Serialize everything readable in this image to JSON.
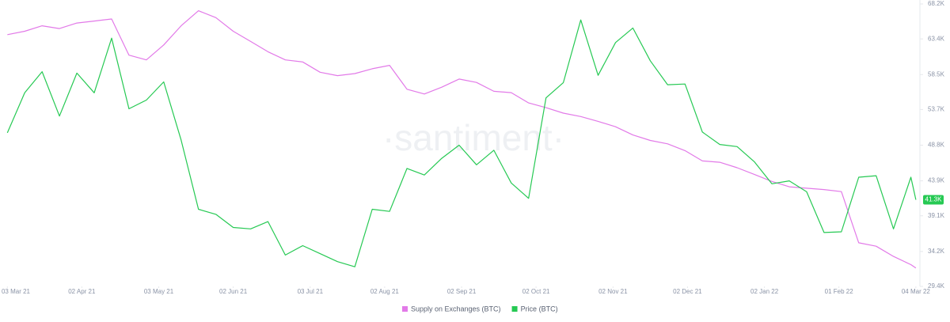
{
  "chart_data": {
    "type": "line",
    "watermark": "·santiment·",
    "x": [
      "2021-03-03",
      "2021-03-10",
      "2021-03-17",
      "2021-03-24",
      "2021-03-31",
      "2021-04-07",
      "2021-04-14",
      "2021-04-21",
      "2021-04-28",
      "2021-05-05",
      "2021-05-12",
      "2021-05-19",
      "2021-05-26",
      "2021-06-02",
      "2021-06-09",
      "2021-06-16",
      "2021-06-23",
      "2021-06-30",
      "2021-07-07",
      "2021-07-14",
      "2021-07-21",
      "2021-07-28",
      "2021-08-04",
      "2021-08-11",
      "2021-08-18",
      "2021-08-25",
      "2021-09-01",
      "2021-09-08",
      "2021-09-15",
      "2021-09-22",
      "2021-09-29",
      "2021-10-06",
      "2021-10-13",
      "2021-10-20",
      "2021-10-27",
      "2021-11-03",
      "2021-11-10",
      "2021-11-17",
      "2021-11-24",
      "2021-12-01",
      "2021-12-08",
      "2021-12-15",
      "2021-12-22",
      "2021-12-29",
      "2022-01-05",
      "2022-01-12",
      "2022-01-19",
      "2022-01-26",
      "2022-02-02",
      "2022-02-09",
      "2022-02-16",
      "2022-02-23",
      "2022-03-02",
      "2022-03-04"
    ],
    "series": [
      {
        "name": "Supply on Exchanges (BTC)",
        "color": "#e27ae8",
        "axis": "y2",
        "values": [
          2655000,
          2660000,
          2668000,
          2664000,
          2672000,
          2675000,
          2678000,
          2625000,
          2618000,
          2640000,
          2668000,
          2690000,
          2680000,
          2660000,
          2645000,
          2630000,
          2618000,
          2615000,
          2600000,
          2595000,
          2598000,
          2605000,
          2610000,
          2575000,
          2568000,
          2578000,
          2590000,
          2585000,
          2572000,
          2570000,
          2555000,
          2548000,
          2540000,
          2535000,
          2528000,
          2520000,
          2508000,
          2500000,
          2495000,
          2485000,
          2470000,
          2468000,
          2460000,
          2450000,
          2440000,
          2432000,
          2430000,
          2428000,
          2425000,
          2350000,
          2345000,
          2330000,
          2318000,
          2313000
        ]
      },
      {
        "name": "Price (BTC)",
        "color": "#26c953",
        "values": [
          50500,
          56000,
          58900,
          52800,
          58700,
          56000,
          63500,
          53800,
          55000,
          57500,
          49500,
          40000,
          39300,
          37500,
          37300,
          38300,
          33700,
          35000,
          33900,
          32800,
          32100,
          40000,
          39700,
          45600,
          44700,
          47000,
          48800,
          46100,
          48100,
          43600,
          41500,
          55300,
          57400,
          66000,
          58400,
          62900,
          64900,
          60400,
          57100,
          57200,
          50600,
          48900,
          48600,
          46500,
          43500,
          43900,
          42400,
          36800,
          36900,
          44400,
          44600,
          37300,
          44400,
          41300
        ]
      }
    ],
    "xlim": [
      "2021-03-01",
      "2022-03-05"
    ],
    "xticks": [
      {
        "value": "2021-03-03",
        "label": "03 Mar 21"
      },
      {
        "value": "2021-04-02",
        "label": "02 Apr 21"
      },
      {
        "value": "2021-05-03",
        "label": "03 May 21"
      },
      {
        "value": "2021-06-02",
        "label": "02 Jun 21"
      },
      {
        "value": "2021-07-03",
        "label": "03 Jul 21"
      },
      {
        "value": "2021-08-02",
        "label": "02 Aug 21"
      },
      {
        "value": "2021-09-02",
        "label": "02 Sep 21"
      },
      {
        "value": "2021-10-02",
        "label": "02 Oct 21"
      },
      {
        "value": "2021-11-02",
        "label": "02 Nov 21"
      },
      {
        "value": "2021-12-02",
        "label": "02 Dec 21"
      },
      {
        "value": "2022-01-02",
        "label": "02 Jan 22"
      },
      {
        "value": "2022-02-01",
        "label": "01 Feb 22"
      },
      {
        "value": "2022-03-04",
        "label": "04 Mar 22"
      }
    ],
    "ylim": [
      29400,
      68200
    ],
    "yticks": [
      {
        "value": 68200,
        "label": "68.2K"
      },
      {
        "value": 63400,
        "label": "63.4K"
      },
      {
        "value": 58500,
        "label": "58.5K"
      },
      {
        "value": 53700,
        "label": "53.7K"
      },
      {
        "value": 48800,
        "label": "48.8K"
      },
      {
        "value": 43900,
        "label": "43.9K"
      },
      {
        "value": 39100,
        "label": "39.1K"
      },
      {
        "value": 34200,
        "label": "34.2K"
      },
      {
        "value": 29400,
        "label": "29.4K"
      }
    ],
    "y2lim": [
      2300000,
      2700000
    ],
    "current_price": {
      "value": 41300,
      "label": "41.3K"
    }
  }
}
